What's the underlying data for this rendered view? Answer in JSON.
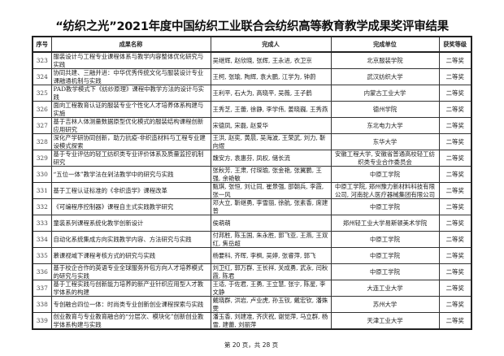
{
  "title": "“纺织之光”2021年度中国纺织工业联合会纺织高等教育教学成果奖评审结果",
  "headers": [
    "序号",
    "成果名称",
    "完成人",
    "完成单位",
    "获奖等级"
  ],
  "rows": [
    [
      "323",
      "服装设计与工程专业课程体系与教学内容整体优化研究与实践",
      "吴继辉, 赵欣晓, 张辉, 王永进, 衣卫京",
      "北京服装学院",
      "二等奖"
    ],
    [
      "324",
      "协同共建、三融并进：中华优秀传统文化与服装设计专业课融通机制与实践",
      "王柯, 张瑜, 陶辉, 袁大鹏, 江学为, 钟蔚",
      "武汉纺织大学",
      "二等奖"
    ],
    [
      "325",
      "PAD教学模式下《纺纱原理》课程中教学方法的设计与实践",
      "王利平, 石大为, 高晓平, 吴薇, 王子鹤",
      "内蒙古工业大学",
      "二等奖"
    ],
    [
      "326",
      "面向工程教育认证的服装专业个性化人才培养体系构建与实施",
      "王秀芝, 王蕾, 徐静, 李学伟, 姜晓巍, 王秀燕",
      "德州学院",
      "二等奖"
    ],
    [
      "327",
      "基于吉林人体测量数据原型优化模式的服装结构课程创新应用研究",
      "宋德凤, 宋磊, 赵爱华",
      "东北电力大学",
      "二等奖"
    ],
    [
      "328",
      "深化产学研协同创新，助力抗疫-非织造材料与工程专业建设模式探索",
      "王洪, 赵奕, 黄晨, 吴海波, 王荣武, 刘力, 靳向煜",
      "东华大学",
      "二等奖"
    ],
    [
      "329",
      "基于专业评估的轻工纺织类专业评价体系及质量监控机制研究",
      "魏安方, 袁惠芬, 凤权, 储长流",
      "安徽工程大学, 安徽省普通高校轻工纺织类专业合作委员会",
      "二等奖"
    ],
    [
      "330",
      "“五位一体”教学法在剁法教学中的研究与实践",
      "张秋芳, 王肃, 付琛瑜, 张金艳, 张翼鹏, 王强, 余艳敏",
      "中原工学院",
      "二等奖"
    ],
    [
      "331",
      "基于工程认证标准的《非织造学》课程改革",
      "甄琪, 张恒, 刘让同, 崔景强, 邵朝兵, 李霞, 张一风",
      "中原工学院, 郑州豫力新材料科技有限公司, 河南驼人医疗器械集团有限公司",
      "二等奖"
    ],
    [
      "332",
      "《可编程序控制器》课程自主式实践教学研究",
      "邓大立, 靳继勇, 李雪丽, 徐航, 张素香, 席建普",
      "中原工学院",
      "二等奖"
    ],
    [
      "333",
      "童装系列课程系统化教学创新设计",
      "侯萌萌",
      "郑州轻工业大学易斯顿美术学院",
      "二等奖"
    ],
    [
      "334",
      "自动化系统集成方向实践教学内容、方法研究与实践",
      "付邦胜, 陈玉国, 朱永胜, 郭飞亚, 王燕, 王双红, 焦岳超",
      "中原工学院",
      "二等奖"
    ],
    [
      "335",
      "慕课视域下课程考核方式的研究与实践",
      "杨要科, 齐晖, 李枫, 吴婷, 张睿萍, 郭飞",
      "中原工学院",
      "二等奖"
    ],
    [
      "336",
      "基于校企合作的英语专业全球服务外包方向人才培养模式的研究与实践",
      "刘卫红, 郭万群, 王长祥, 关成勇, 武永, 闫秋霞, 陈君",
      "中原工学院",
      "二等奖"
    ],
    [
      "337",
      "基于工程实践与创新能力培养的新产业针织应用型人才教学体系的构建",
      "王适, 于佐君, 王勇, 王立慧, 张宁, 陈星, 李文静",
      "大连工业大学",
      "二等奖"
    ],
    [
      "338",
      "专创融合四位一体：时尚类专业创新创业课程探索与实践",
      "戴晓群, 洪岩, 卢业虎, 孙玉钗, 戴宏钦, 潘姝雯",
      "苏州大学",
      "二等奖"
    ],
    [
      "339",
      "创业教育与专业教育融合的“分层次、模块化”创新创业教学体系构建与实践",
      "潘玉香, 刘建准, 齐庆祝, 谢觉萍, 马立群, 杨雪, 建蕾, 刘丽萍",
      "天津工业大学",
      "二等奖"
    ]
  ],
  "footer": "第 20 页，共 28 页"
}
